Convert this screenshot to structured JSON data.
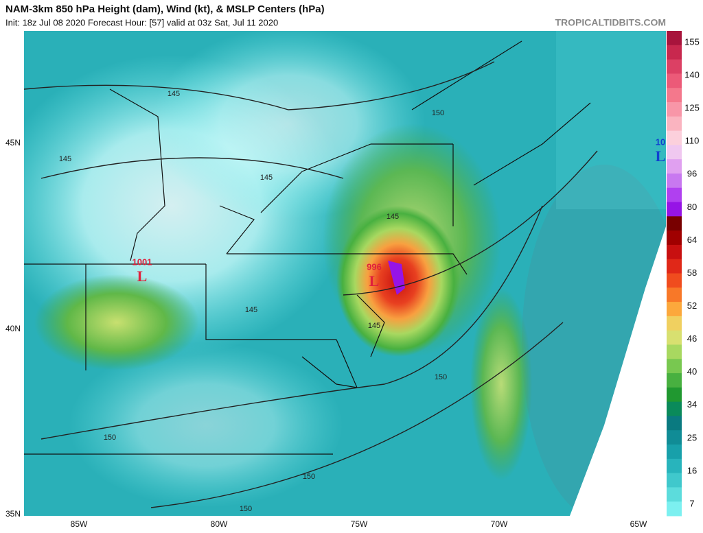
{
  "header": {
    "title": "NAM-3km 850 hPa Height (dam), Wind (kt), & MSLP Centers (hPa)",
    "subtitle": "Init: 18z Jul 08 2020   Forecast Hour: [57]   valid at 03z Sat, Jul 11 2020",
    "site": "TROPICALTIDBITS.COM"
  },
  "map": {
    "lat_labels": [
      "45N",
      "40N",
      "35N"
    ],
    "lon_labels": [
      "85W",
      "80W",
      "75W",
      "70W",
      "65W"
    ],
    "contour_labels": [
      "145",
      "145",
      "145",
      "145",
      "145",
      "145",
      "150",
      "150",
      "150",
      "150",
      "150"
    ],
    "pressure_centers": [
      {
        "value": "1001",
        "symbol": "L"
      },
      {
        "value": "996",
        "symbol": "L"
      },
      {
        "value": "10",
        "symbol": "L"
      }
    ]
  },
  "colorbar": {
    "ticks": [
      155,
      140,
      125,
      110,
      96,
      80,
      64,
      58,
      52,
      46,
      40,
      34,
      25,
      16,
      7
    ],
    "colors": [
      "#a8143c",
      "#c8284e",
      "#dc4064",
      "#ec5a78",
      "#f4788c",
      "#f896a8",
      "#fab4c0",
      "#fcd0dc",
      "#f0c8f0",
      "#e0a0f0",
      "#c878f0",
      "#b040f0",
      "#9614e6",
      "#780000",
      "#a00000",
      "#c81010",
      "#e02818",
      "#f04c1e",
      "#f87828",
      "#fca83c",
      "#f0d060",
      "#d8e070",
      "#a8d860",
      "#78c850",
      "#48b040",
      "#209830",
      "#0a8a5a",
      "#0a7a80",
      "#108c96",
      "#18a0aa",
      "#28b4bc",
      "#40c8cc",
      "#5cdcdc",
      "#7cf0f0"
    ]
  }
}
